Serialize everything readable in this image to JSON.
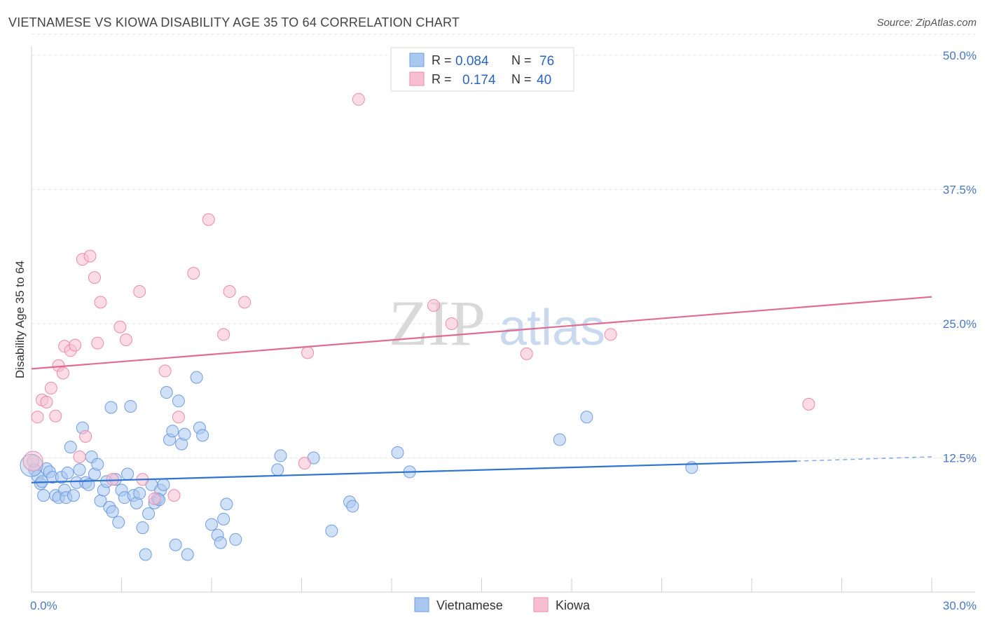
{
  "title": "VIETNAMESE VS KIOWA DISABILITY AGE 35 TO 64 CORRELATION CHART",
  "source": "Source: ZipAtlas.com",
  "watermark": {
    "zip": "ZIP",
    "atlas": "atlas"
  },
  "legend": {
    "rows": [
      {
        "r_label": "R =",
        "r_value": "0.084",
        "n_label": "N =",
        "n_value": "76",
        "color": "#a9c8f0",
        "stroke": "#6f9be0"
      },
      {
        "r_label": "R =",
        "r_value": "0.174",
        "n_label": "N =",
        "n_value": "40",
        "color": "#f7bfd1",
        "stroke": "#e98aac"
      }
    ]
  },
  "chart_data": {
    "type": "scatter",
    "xlabel": "",
    "ylabel": "Disability Age 35 to 64",
    "xlim": [
      0,
      30
    ],
    "ylim": [
      0,
      50
    ],
    "x_tick_labels": [
      "0.0%",
      "30.0%"
    ],
    "y_ticks": [
      12.5,
      25.0,
      37.5,
      50.0
    ],
    "y_tick_labels": [
      "12.5%",
      "25.0%",
      "37.5%",
      "50.0%"
    ],
    "series": [
      {
        "name": "Vietnamese",
        "color": "#a9c8f0",
        "stroke": "#6f9be0",
        "line_color": "#2f74d0",
        "trend": {
          "x0": 0,
          "y0": 10.2,
          "x1": 25.5,
          "y1": 12.2,
          "dash_to_x": 30,
          "dash_to_y": 12.6
        },
        "points": [
          [
            0.1,
            11.4
          ],
          [
            0.2,
            10.8
          ],
          [
            0.3,
            10.1
          ],
          [
            0.35,
            10.3
          ],
          [
            0.4,
            9.0
          ],
          [
            0.5,
            11.5
          ],
          [
            0.6,
            11.2
          ],
          [
            0.7,
            10.7
          ],
          [
            0.8,
            9.0
          ],
          [
            0.9,
            8.8
          ],
          [
            1.0,
            10.7
          ],
          [
            1.1,
            9.5
          ],
          [
            1.15,
            8.8
          ],
          [
            1.2,
            11.1
          ],
          [
            1.3,
            13.5
          ],
          [
            1.4,
            9.0
          ],
          [
            1.5,
            10.2
          ],
          [
            1.6,
            11.4
          ],
          [
            1.7,
            15.3
          ],
          [
            1.8,
            10.2
          ],
          [
            1.9,
            10.0
          ],
          [
            2.0,
            12.6
          ],
          [
            2.1,
            11.0
          ],
          [
            2.2,
            11.9
          ],
          [
            2.3,
            8.5
          ],
          [
            2.4,
            9.5
          ],
          [
            2.5,
            10.3
          ],
          [
            2.6,
            7.9
          ],
          [
            2.65,
            17.2
          ],
          [
            2.7,
            7.5
          ],
          [
            2.8,
            10.5
          ],
          [
            2.9,
            6.5
          ],
          [
            3.0,
            9.5
          ],
          [
            3.1,
            8.8
          ],
          [
            3.2,
            11.0
          ],
          [
            3.3,
            17.3
          ],
          [
            3.4,
            9.0
          ],
          [
            3.5,
            8.3
          ],
          [
            3.6,
            9.2
          ],
          [
            3.7,
            6.0
          ],
          [
            3.8,
            3.5
          ],
          [
            3.9,
            7.3
          ],
          [
            4.0,
            10.0
          ],
          [
            4.1,
            8.3
          ],
          [
            4.2,
            8.7
          ],
          [
            4.3,
            9.5
          ],
          [
            4.4,
            10.0
          ],
          [
            4.5,
            18.6
          ],
          [
            4.6,
            14.2
          ],
          [
            4.7,
            15.0
          ],
          [
            4.8,
            4.4
          ],
          [
            4.9,
            17.8
          ],
          [
            5.0,
            13.8
          ],
          [
            5.1,
            14.7
          ],
          [
            5.5,
            20.0
          ],
          [
            5.6,
            15.3
          ],
          [
            5.7,
            14.6
          ],
          [
            6.0,
            6.3
          ],
          [
            6.2,
            5.3
          ],
          [
            6.3,
            4.6
          ],
          [
            6.4,
            6.8
          ],
          [
            6.5,
            8.2
          ],
          [
            6.8,
            4.9
          ],
          [
            8.2,
            11.4
          ],
          [
            8.3,
            12.7
          ],
          [
            9.4,
            12.5
          ],
          [
            10.0,
            5.7
          ],
          [
            10.6,
            8.4
          ],
          [
            10.7,
            8.0
          ],
          [
            12.2,
            13.0
          ],
          [
            12.6,
            11.2
          ],
          [
            17.6,
            14.2
          ],
          [
            18.5,
            16.3
          ],
          [
            22.0,
            11.6
          ],
          [
            5.2,
            3.5
          ],
          [
            4.25,
            8.6
          ]
        ],
        "sizes": [
          30
        ]
      },
      {
        "name": "Kiowa",
        "color": "#f7bfd1",
        "stroke": "#e98aac",
        "line_color": "#e06c93",
        "trend": {
          "x0": 0,
          "y0": 20.8,
          "x1": 30,
          "y1": 27.5
        },
        "points": [
          [
            0.2,
            16.3
          ],
          [
            0.35,
            17.9
          ],
          [
            0.5,
            17.7
          ],
          [
            0.65,
            19.0
          ],
          [
            0.8,
            16.4
          ],
          [
            0.9,
            21.1
          ],
          [
            1.05,
            20.4
          ],
          [
            1.1,
            22.9
          ],
          [
            1.3,
            22.5
          ],
          [
            1.45,
            23.0
          ],
          [
            1.6,
            12.6
          ],
          [
            1.7,
            31.0
          ],
          [
            1.8,
            14.5
          ],
          [
            1.95,
            31.3
          ],
          [
            2.1,
            29.3
          ],
          [
            2.2,
            23.2
          ],
          [
            2.3,
            27.0
          ],
          [
            2.7,
            10.5
          ],
          [
            2.95,
            24.7
          ],
          [
            3.15,
            23.5
          ],
          [
            3.6,
            28.0
          ],
          [
            3.7,
            10.5
          ],
          [
            4.1,
            8.7
          ],
          [
            4.45,
            20.6
          ],
          [
            4.75,
            9.0
          ],
          [
            4.9,
            16.3
          ],
          [
            5.4,
            29.7
          ],
          [
            5.9,
            34.7
          ],
          [
            6.4,
            24.0
          ],
          [
            6.6,
            28.0
          ],
          [
            7.1,
            27.0
          ],
          [
            9.1,
            12.0
          ],
          [
            9.2,
            22.3
          ],
          [
            10.9,
            45.9
          ],
          [
            13.4,
            26.7
          ],
          [
            14.0,
            25.0
          ],
          [
            16.5,
            22.2
          ],
          [
            19.3,
            24.0
          ],
          [
            25.9,
            17.5
          ],
          [
            0.05,
            12.2
          ]
        ],
        "sizes": [
          30
        ]
      }
    ]
  },
  "bottom_legend": [
    {
      "label": "Vietnamese",
      "color": "#a9c8f0",
      "stroke": "#6f9be0"
    },
    {
      "label": "Kiowa",
      "color": "#f7bfd1",
      "stroke": "#e98aac"
    }
  ]
}
